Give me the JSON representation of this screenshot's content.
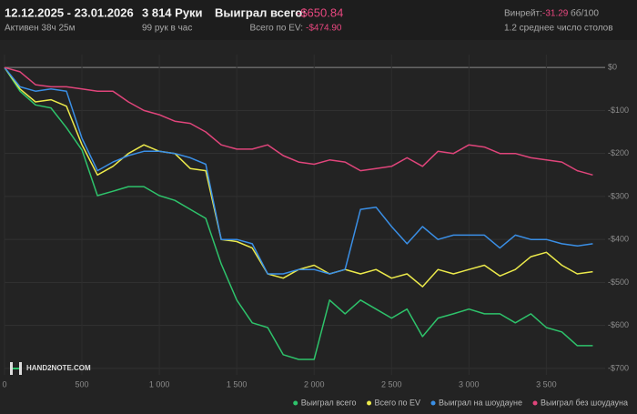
{
  "header": {
    "date_range": "12.12.2025 - 23.01.2026",
    "active": "Активен 38ч 25м",
    "hands": "3 814 Руки",
    "hands_per_hour": "99 рук в час",
    "won_total_label": "Выиграл всего:",
    "won_total": "-$650.84",
    "ev_label": "Всего по EV:",
    "ev_total": "-$474.90",
    "winrate_label": "Винрейт:",
    "winrate": "-31.29",
    "winrate_unit": "бб/100",
    "avg_tables": "1.2 среднее число столов"
  },
  "logo": "HAND2NOTE.COM",
  "chart_data": {
    "type": "line",
    "x": [
      0,
      100,
      200,
      300,
      400,
      500,
      600,
      700,
      800,
      900,
      1000,
      1100,
      1200,
      1300,
      1400,
      1500,
      1600,
      1700,
      1800,
      1900,
      2000,
      2100,
      2200,
      2300,
      2400,
      2500,
      2600,
      2700,
      2800,
      2900,
      3000,
      3100,
      3200,
      3300,
      3400,
      3500,
      3600,
      3700,
      3800
    ],
    "series": [
      {
        "name": "Выиграл всего",
        "color": "#2ec36b",
        "values": [
          0,
          -55,
          -87,
          -94,
          -140,
          -192,
          -298,
          -288,
          -277,
          -277,
          -298,
          -309,
          -330,
          -351,
          -457,
          -541,
          -594,
          -605,
          -668,
          -679,
          -679,
          -541,
          -573,
          -541,
          -562,
          -583,
          -562,
          -626,
          -583,
          -573,
          -562,
          -573,
          -573,
          -594,
          -573,
          -605,
          -615,
          -647,
          -647
        ]
      },
      {
        "name": "Всего по EV",
        "color": "#ecea4b",
        "values": [
          0,
          -50,
          -80,
          -75,
          -90,
          -180,
          -250,
          -230,
          -200,
          -180,
          -195,
          -200,
          -235,
          -240,
          -400,
          -405,
          -420,
          -480,
          -490,
          -470,
          -460,
          -480,
          -470,
          -480,
          -470,
          -490,
          -480,
          -510,
          -470,
          -480,
          -470,
          -460,
          -485,
          -470,
          -440,
          -430,
          -460,
          -480,
          -475
        ]
      },
      {
        "name": "Выиграл на шоудауне",
        "color": "#3a8fe6",
        "values": [
          0,
          -45,
          -55,
          -50,
          -55,
          -165,
          -240,
          -220,
          -205,
          -195,
          -195,
          -200,
          -210,
          -225,
          -400,
          -400,
          -410,
          -480,
          -480,
          -470,
          -470,
          -480,
          -470,
          -330,
          -325,
          -370,
          -410,
          -370,
          -400,
          -390,
          -390,
          -390,
          -420,
          -390,
          -400,
          -400,
          -410,
          -415,
          -410
        ]
      },
      {
        "name": "Выиграл без шоудауна",
        "color": "#e0457b",
        "values": [
          0,
          -10,
          -40,
          -45,
          -45,
          -50,
          -55,
          -55,
          -80,
          -100,
          -110,
          -125,
          -130,
          -150,
          -180,
          -190,
          -190,
          -180,
          -205,
          -220,
          -225,
          -215,
          -220,
          -240,
          -235,
          -230,
          -210,
          -230,
          -195,
          -200,
          -180,
          -185,
          -200,
          -200,
          -210,
          -215,
          -220,
          -240,
          -250
        ]
      }
    ],
    "xlim": [
      0,
      3880
    ],
    "ylim": [
      -715,
      30
    ],
    "xticks": [
      0,
      500,
      {
        "value": 1000,
        "label": "1 000"
      },
      {
        "value": 1500,
        "label": "1 500"
      },
      {
        "value": 2000,
        "label": "2 000"
      },
      {
        "value": 2500,
        "label": "2 500"
      },
      {
        "value": 3000,
        "label": "3 000"
      },
      {
        "value": 3500,
        "label": "3 500"
      }
    ],
    "yticks": [
      {
        "value": 0,
        "label": "$0"
      },
      {
        "value": -100,
        "label": "-$100"
      },
      {
        "value": -200,
        "label": "-$200"
      },
      {
        "value": -300,
        "label": "-$300"
      },
      {
        "value": -400,
        "label": "-$400"
      },
      {
        "value": -500,
        "label": "-$500"
      },
      {
        "value": -600,
        "label": "-$600"
      },
      {
        "value": -700,
        "label": "-$700"
      }
    ],
    "grid": true,
    "legend": "bottom-right"
  }
}
